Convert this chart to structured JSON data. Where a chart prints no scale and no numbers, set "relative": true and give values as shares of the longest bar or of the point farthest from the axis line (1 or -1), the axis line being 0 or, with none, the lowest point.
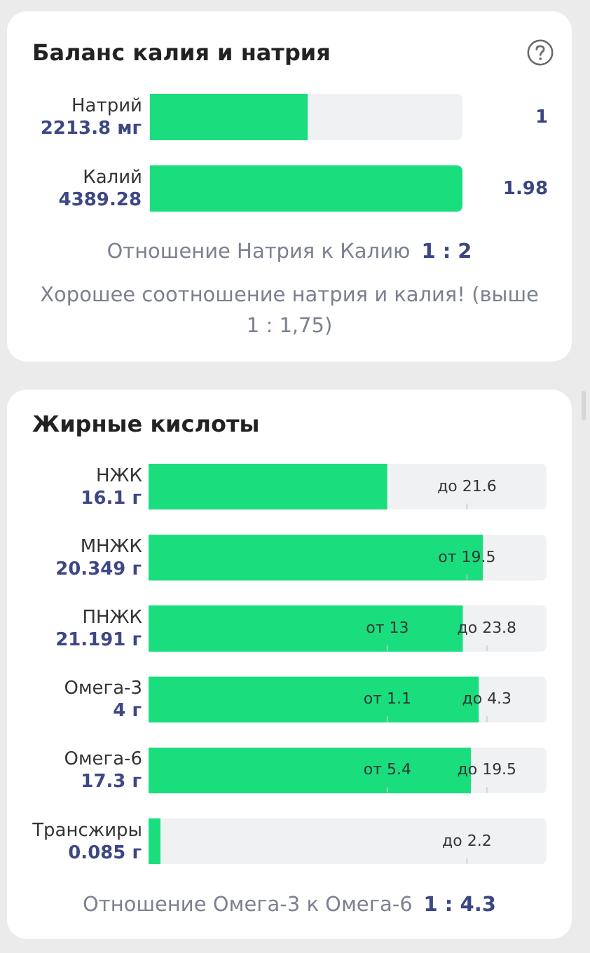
{
  "chart_data": [
    {
      "type": "bar",
      "title": "Баланс калия и натрия",
      "orientation": "horizontal",
      "stacked": true,
      "categories": [
        "Натрий",
        "Калий"
      ],
      "series": [
        {
          "color": "#1ade7e",
          "values": [
            1,
            1.98
          ],
          "value_labels": [
            "1",
            "1.98"
          ]
        },
        {
          "color": "#f0f1f3",
          "values": [
            0.98,
            null
          ]
        }
      ],
      "annotations": [
        "2213.8 мг",
        "4389.28",
        "Отношение Натрия к Калию",
        "1 : 2",
        "Хорошее соотношение натрия и калия! (выше 1 : 1,75)"
      ]
    },
    {
      "type": "bar",
      "title": "Жирные кислоты",
      "orientation": "horizontal",
      "stacked": true,
      "relative": true,
      "categories": [
        "НЖК",
        "МНЖК",
        "ПНЖК",
        "Омега-3",
        "Омега-6",
        "Трансжиры"
      ],
      "series": [
        {
          "color": "#1ade7e",
          "values": [
            0.6,
            0.84,
            0.79,
            0.83,
            0.81,
            0.03
          ]
        },
        {
          "color": "#f0f1f3",
          "values": [
            0.4,
            0.16,
            0.21,
            0.17,
            0.19,
            0.97
          ]
        }
      ],
      "annotations": [
        "16.1 г",
        "20.349 г",
        "21.191 г",
        "4 г",
        "17.3 г",
        "0.085 г",
        {
          "text": "до 21.6",
          "x": 0.8,
          "y": "НЖК"
        },
        {
          "text": "от 19.5",
          "x": 0.8,
          "y": "МНЖК"
        },
        {
          "text": "от 13",
          "x": 0.6,
          "y": "ПНЖК"
        },
        {
          "text": "до 23.8",
          "x": 0.85,
          "y": "ПНЖК"
        },
        {
          "text": "от 1.1",
          "x": 0.6,
          "y": "Омега-3"
        },
        {
          "text": "до 4.3",
          "x": 0.85,
          "y": "Омега-3"
        },
        {
          "text": "от 5.4",
          "x": 0.6,
          "y": "Омега-6"
        },
        {
          "text": "до 19.5",
          "x": 0.85,
          "y": "Омега-6"
        },
        {
          "text": "до 2.2",
          "x": 0.8,
          "y": "Трансжиры"
        },
        "Отношение Омега-3 к Омега-6",
        "1 : 4.3"
      ]
    }
  ]
}
